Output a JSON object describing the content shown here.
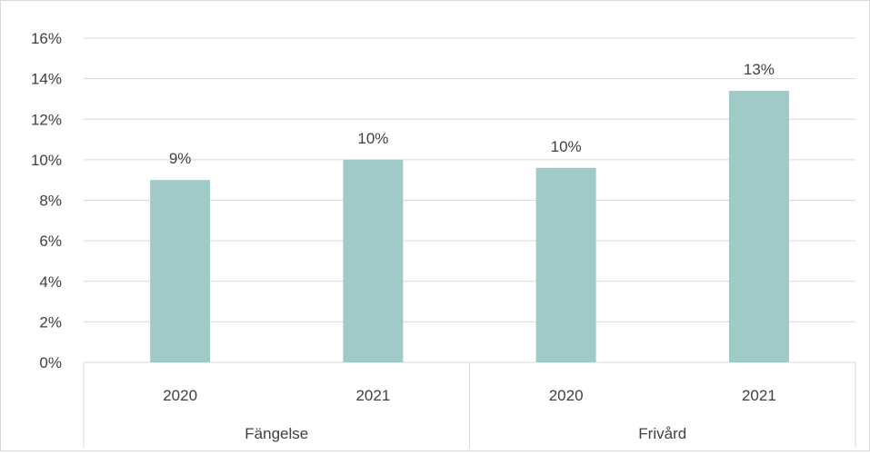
{
  "chart_data": {
    "type": "bar",
    "title": "",
    "xlabel": "",
    "ylabel": "",
    "ylim": [
      0,
      16
    ],
    "y_ticks": [
      0,
      2,
      4,
      6,
      8,
      10,
      12,
      14,
      16
    ],
    "y_tick_labels": [
      "0%",
      "2%",
      "4%",
      "6%",
      "8%",
      "10%",
      "12%",
      "14%",
      "16%"
    ],
    "grid": true,
    "legend": "none",
    "bar_color": "#9fcac8",
    "groups": [
      {
        "label": "Fängelse",
        "categories": [
          "2020",
          "2021"
        ],
        "values": [
          9.0,
          10.0
        ],
        "data_labels": [
          "9%",
          "10%"
        ]
      },
      {
        "label": "Frivård",
        "categories": [
          "2020",
          "2021"
        ],
        "values": [
          9.6,
          13.4
        ],
        "data_labels": [
          "10%",
          "13%"
        ]
      }
    ]
  }
}
